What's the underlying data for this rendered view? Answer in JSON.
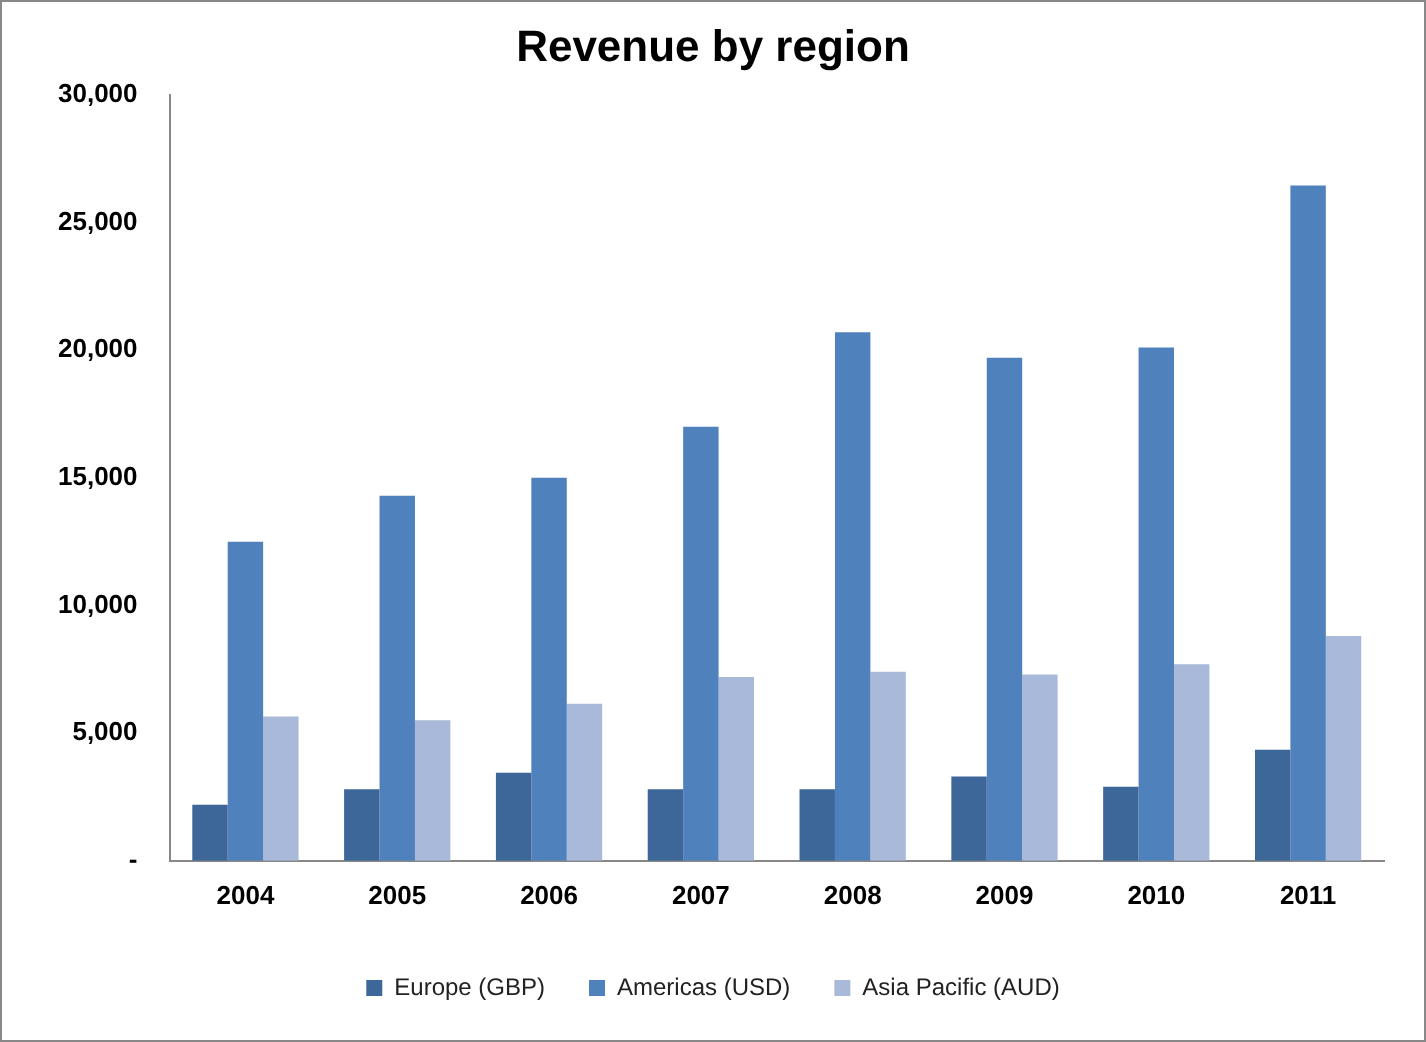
{
  "chart_data": {
    "type": "bar",
    "title": "Revenue by region",
    "categories": [
      "2004",
      "2005",
      "2006",
      "2007",
      "2008",
      "2009",
      "2010",
      "2011"
    ],
    "series": [
      {
        "name": "Europe (GBP)",
        "color": "#3d6699",
        "values": [
          2200,
          2800,
          3450,
          2800,
          2800,
          3300,
          2900,
          4350
        ]
      },
      {
        "name": "Americas (USD)",
        "color": "#4f81bd",
        "values": [
          12500,
          14300,
          15000,
          17000,
          20700,
          19700,
          20100,
          26450
        ]
      },
      {
        "name": "Asia Pacific (AUD)",
        "color": "#a9b9d9",
        "values": [
          5650,
          5500,
          6150,
          7200,
          7400,
          7300,
          7700,
          8800
        ]
      }
    ],
    "ylim": [
      0,
      30000
    ],
    "yticks": [
      {
        "value": 0,
        "label": "-"
      },
      {
        "value": 5000,
        "label": "5,000"
      },
      {
        "value": 10000,
        "label": "10,000"
      },
      {
        "value": 15000,
        "label": "15,000"
      },
      {
        "value": 20000,
        "label": "20,000"
      },
      {
        "value": 25000,
        "label": "25,000"
      },
      {
        "value": 30000,
        "label": "30,000"
      }
    ],
    "grid": false,
    "legend": "bottom"
  }
}
